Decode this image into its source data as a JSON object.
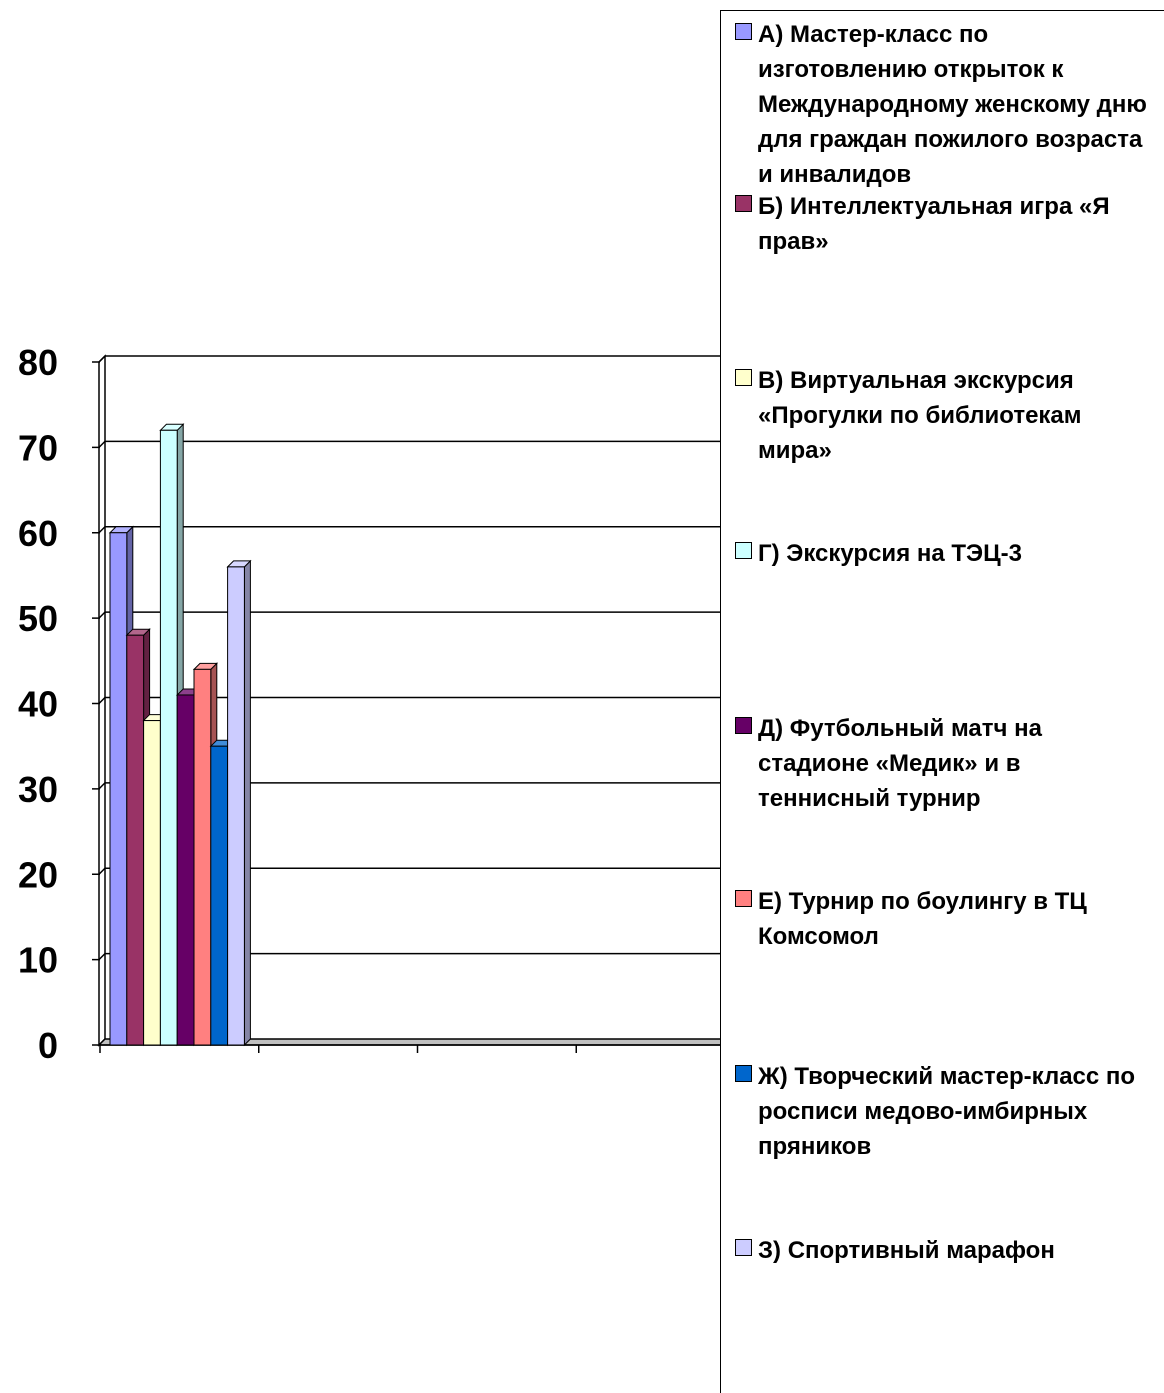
{
  "chart_data": {
    "type": "bar",
    "title": "",
    "xlabel": "",
    "ylabel": "",
    "ylim": [
      0,
      80
    ],
    "yticks": [
      0,
      10,
      20,
      30,
      40,
      50,
      60,
      70,
      80
    ],
    "grid": true,
    "legend_position": "right",
    "series": [
      {
        "name": "А) Мастер-класс по изготовлению открыток к Международному женскому дню для граждан пожилого возраста и инвалидов",
        "value": 60,
        "color": "#9999ff"
      },
      {
        "name": "Б) Интеллектуальная игра «Я прав»",
        "value": 48,
        "color": "#993366"
      },
      {
        "name": "В) Виртуальная экскурсия «Прогулки по библиотекам мира»",
        "value": 38,
        "color": "#ffffcc"
      },
      {
        "name": "Г) Экскурсия на ТЭЦ-3",
        "value": 72,
        "color": "#ccffff"
      },
      {
        "name": "Д) Футбольный матч на стадионе «Медик» и в теннисный турнир",
        "value": 41,
        "color": "#660066"
      },
      {
        "name": "Е) Турнир по боулингу в ТЦ Комсомол",
        "value": 44,
        "color": "#ff8080"
      },
      {
        "name": "Ж) Творческий мастер-класс по росписи медово-имбирных пряников",
        "value": 35,
        "color": "#0066cc"
      },
      {
        "name": "З) Спортивный марафон",
        "value": 56,
        "color": "#ccccff"
      }
    ]
  }
}
